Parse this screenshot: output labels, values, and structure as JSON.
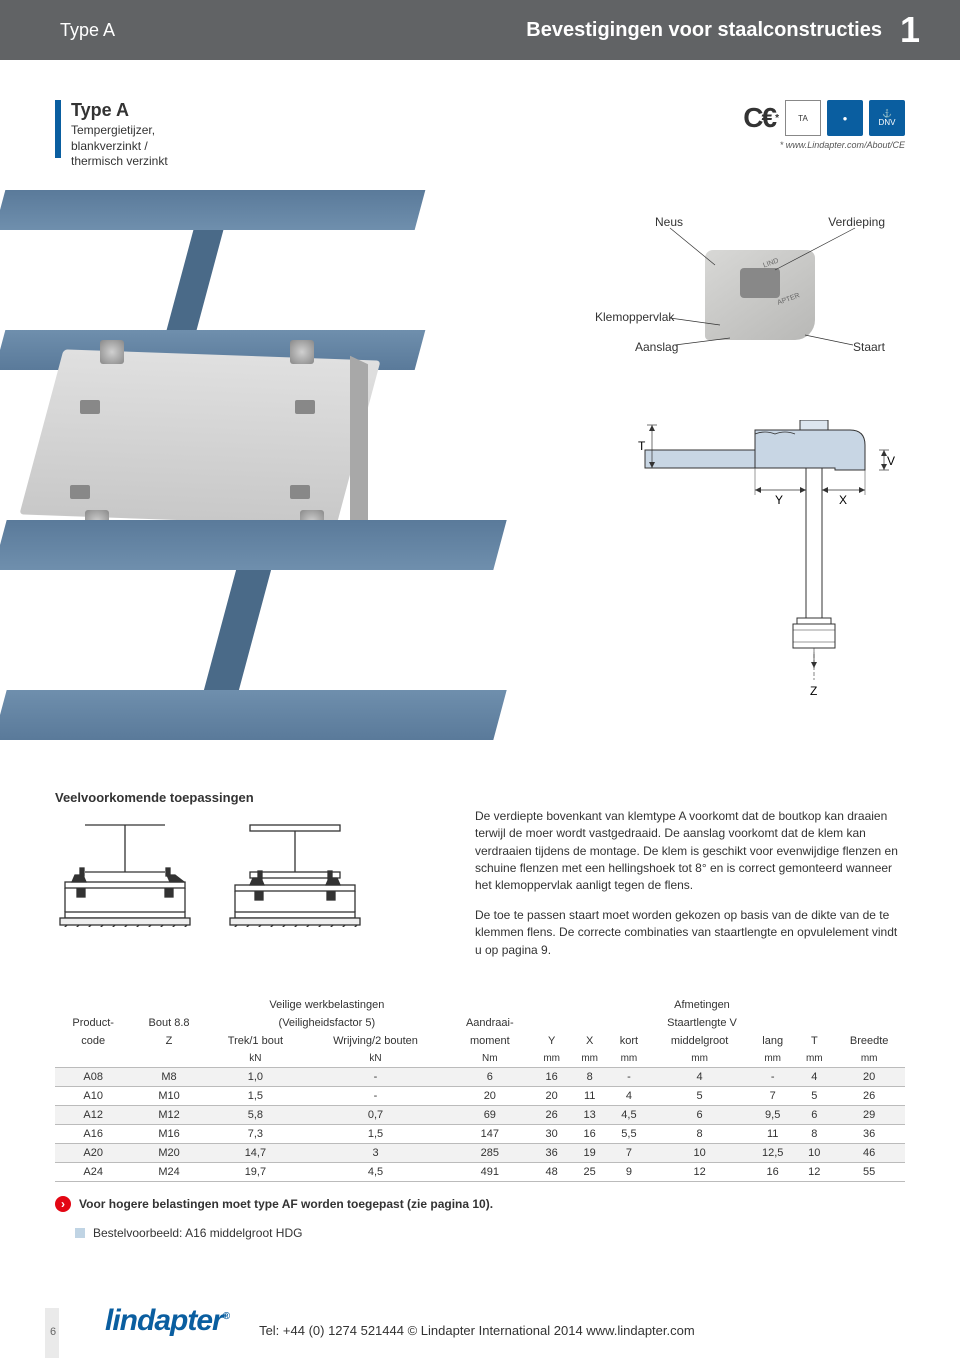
{
  "header": {
    "type": "Type A",
    "title": "Bevestigingen voor staalconstructies",
    "page": "1"
  },
  "type_block": {
    "heading": "Type A",
    "desc_line1": "Tempergietijzer,",
    "desc_line2": "blankverzinkt /",
    "desc_line3": "thermisch verzinkt"
  },
  "badges": {
    "ce": "CE",
    "note": "* www.Lindapter.com/About/CE"
  },
  "clamp_labels": {
    "neus": "Neus",
    "verdieping": "Verdieping",
    "klemoppervlak": "Klemoppervlak",
    "aanslag": "Aanslag",
    "staart": "Staart"
  },
  "drawing": {
    "T": "T",
    "V": "V",
    "Y": "Y",
    "X": "X",
    "Z": "Z"
  },
  "apps": {
    "title": "Veelvoorkomende toepassingen",
    "para1": "De verdiepte bovenkant van klemtype A voorkomt dat de boutkop kan draaien terwijl de moer wordt vastgedraaid. De aanslag voorkomt dat de klem kan verdraaien tijdens de montage. De klem is geschikt voor evenwijdige flenzen en schuine flenzen met een hellingshoek tot 8° en is correct gemonteerd wanneer het klemoppervlak aanligt tegen de flens.",
    "para2": "De toe te passen staart moet worden gekozen op basis van de dikte van de te klemmen flens. De correcte combinaties van staartlengte en opvulelement vindt u op pagina 9."
  },
  "table": {
    "headers": {
      "veilige": "Veilige werkbelastingen",
      "afmetingen": "Afmetingen",
      "product": "Product-",
      "code": "code",
      "bout": "Bout 8.8",
      "z": "Z",
      "vf": "(Veiligheidsfactor 5)",
      "trek": "Trek/1 bout",
      "wrijving": "Wrijving/2 bouten",
      "kn": "kN",
      "aandraai1": "Aandraai-",
      "aandraai2": "moment",
      "nm": "Nm",
      "y": "Y",
      "x": "X",
      "mm": "mm",
      "staart": "Staartlengte V",
      "kort": "kort",
      "middel": "middelgroot",
      "lang": "lang",
      "t": "T",
      "breedte": "Breedte"
    },
    "rows": [
      {
        "code": "A08",
        "bout": "M8",
        "trek": "1,0",
        "wrijving": "-",
        "moment": "6",
        "y": "16",
        "x": "8",
        "kort": "-",
        "mid": "4",
        "lang": "-",
        "t": "4",
        "breedte": "20"
      },
      {
        "code": "A10",
        "bout": "M10",
        "trek": "1,5",
        "wrijving": "-",
        "moment": "20",
        "y": "20",
        "x": "11",
        "kort": "4",
        "mid": "5",
        "lang": "7",
        "t": "5",
        "breedte": "26"
      },
      {
        "code": "A12",
        "bout": "M12",
        "trek": "5,8",
        "wrijving": "0,7",
        "moment": "69",
        "y": "26",
        "x": "13",
        "kort": "4,5",
        "mid": "6",
        "lang": "9,5",
        "t": "6",
        "breedte": "29"
      },
      {
        "code": "A16",
        "bout": "M16",
        "trek": "7,3",
        "wrijving": "1,5",
        "moment": "147",
        "y": "30",
        "x": "16",
        "kort": "5,5",
        "mid": "8",
        "lang": "11",
        "t": "8",
        "breedte": "36"
      },
      {
        "code": "A20",
        "bout": "M20",
        "trek": "14,7",
        "wrijving": "3",
        "moment": "285",
        "y": "36",
        "x": "19",
        "kort": "7",
        "mid": "10",
        "lang": "12,5",
        "t": "10",
        "breedte": "46"
      },
      {
        "code": "A24",
        "bout": "M24",
        "trek": "19,7",
        "wrijving": "4,5",
        "moment": "491",
        "y": "48",
        "x": "25",
        "kort": "9",
        "mid": "12",
        "lang": "16",
        "t": "12",
        "breedte": "55"
      }
    ]
  },
  "note": "Voor hogere belastingen moet type AF worden toegepast (zie pagina 10).",
  "order": "Bestelvoorbeeld: A16 middelgroot HDG",
  "footer": {
    "page": "6",
    "logo": "lindapter",
    "info": "Tel: +44 (0) 1274 521444   © Lindapter International 2014   www.lindapter.com"
  },
  "colors": {
    "header_bg": "#616365",
    "brand_blue": "#0a5ea0",
    "red": "#e30613",
    "steel_light": "#6f8fad",
    "steel_dark": "#5a7a9a"
  }
}
